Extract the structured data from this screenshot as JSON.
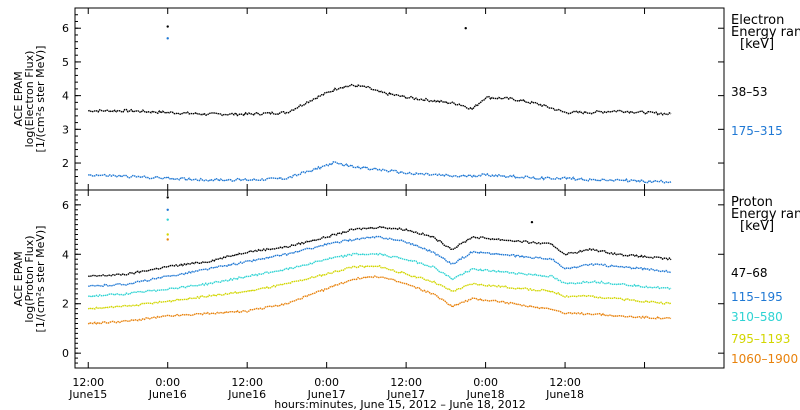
{
  "chart_data": [
    {
      "type": "scatter",
      "panel": "electron",
      "ylabel_lines": [
        "ACE EPAM",
        "log(Electron Flux)",
        "[1/(cm²s ster MeV)]"
      ],
      "ylim": [
        1.2,
        6.6
      ],
      "yticks": [
        "2",
        "3",
        "4",
        "5",
        "6"
      ],
      "legend_title": [
        "Electron",
        "Energy range",
        "[keV]"
      ],
      "series": [
        {
          "name": "38–53",
          "color": "#000000",
          "points": [
            [
              0,
              3.55
            ],
            [
              6,
              3.55
            ],
            [
              12,
              3.5
            ],
            [
              18,
              3.45
            ],
            [
              24,
              3.45
            ],
            [
              30,
              3.5
            ],
            [
              34,
              3.9
            ],
            [
              38,
              4.25
            ],
            [
              40,
              4.3
            ],
            [
              42,
              4.25
            ],
            [
              44,
              4.1
            ],
            [
              48,
              3.95
            ],
            [
              52,
              3.85
            ],
            [
              56,
              3.75
            ],
            [
              58,
              3.6
            ],
            [
              60,
              3.95
            ],
            [
              64,
              3.9
            ],
            [
              68,
              3.75
            ],
            [
              72,
              3.5
            ],
            [
              76,
              3.5
            ],
            [
              80,
              3.55
            ],
            [
              84,
              3.5
            ],
            [
              88,
              3.45
            ]
          ]
        },
        {
          "name": "175–315",
          "color": "#1f78d4",
          "points": [
            [
              0,
              1.65
            ],
            [
              6,
              1.6
            ],
            [
              12,
              1.55
            ],
            [
              18,
              1.5
            ],
            [
              24,
              1.5
            ],
            [
              30,
              1.55
            ],
            [
              34,
              1.8
            ],
            [
              37,
              2.0
            ],
            [
              40,
              1.9
            ],
            [
              44,
              1.8
            ],
            [
              48,
              1.7
            ],
            [
              52,
              1.65
            ],
            [
              56,
              1.6
            ],
            [
              60,
              1.65
            ],
            [
              64,
              1.6
            ],
            [
              68,
              1.55
            ],
            [
              72,
              1.55
            ],
            [
              76,
              1.5
            ],
            [
              80,
              1.5
            ],
            [
              84,
              1.45
            ],
            [
              88,
              1.45
            ]
          ]
        }
      ]
    },
    {
      "type": "scatter",
      "panel": "proton",
      "ylabel_lines": [
        "ACE EPAM",
        "log(Proton Flux)",
        "[1/(cm²s ster MeV)]"
      ],
      "ylim": [
        -0.6,
        6.6
      ],
      "yticks": [
        "0",
        "2",
        "4",
        "6"
      ],
      "legend_title": [
        "Proton",
        "Energy range",
        "[keV]"
      ],
      "series": [
        {
          "name": "47–68",
          "color": "#000000",
          "points": [
            [
              0,
              3.1
            ],
            [
              6,
              3.2
            ],
            [
              12,
              3.5
            ],
            [
              18,
              3.7
            ],
            [
              24,
              4.1
            ],
            [
              30,
              4.3
            ],
            [
              36,
              4.7
            ],
            [
              40,
              5.0
            ],
            [
              44,
              5.1
            ],
            [
              48,
              5.0
            ],
            [
              52,
              4.7
            ],
            [
              55,
              4.2
            ],
            [
              58,
              4.7
            ],
            [
              62,
              4.6
            ],
            [
              66,
              4.5
            ],
            [
              70,
              4.4
            ],
            [
              72,
              4.0
            ],
            [
              76,
              4.2
            ],
            [
              80,
              4.0
            ],
            [
              84,
              3.9
            ],
            [
              88,
              3.8
            ]
          ]
        },
        {
          "name": "115–195",
          "color": "#1f78d4",
          "points": [
            [
              0,
              2.7
            ],
            [
              6,
              2.8
            ],
            [
              12,
              3.1
            ],
            [
              18,
              3.4
            ],
            [
              24,
              3.7
            ],
            [
              30,
              4.0
            ],
            [
              36,
              4.4
            ],
            [
              40,
              4.6
            ],
            [
              44,
              4.7
            ],
            [
              48,
              4.5
            ],
            [
              52,
              4.1
            ],
            [
              55,
              3.6
            ],
            [
              58,
              4.1
            ],
            [
              62,
              4.0
            ],
            [
              66,
              3.9
            ],
            [
              70,
              3.8
            ],
            [
              72,
              3.4
            ],
            [
              76,
              3.6
            ],
            [
              80,
              3.5
            ],
            [
              84,
              3.4
            ],
            [
              88,
              3.3
            ]
          ]
        },
        {
          "name": "310–580",
          "color": "#2ed3d3",
          "points": [
            [
              0,
              2.3
            ],
            [
              6,
              2.4
            ],
            [
              12,
              2.6
            ],
            [
              18,
              2.8
            ],
            [
              24,
              3.1
            ],
            [
              30,
              3.4
            ],
            [
              36,
              3.8
            ],
            [
              40,
              4.0
            ],
            [
              44,
              4.0
            ],
            [
              48,
              3.8
            ],
            [
              52,
              3.5
            ],
            [
              55,
              3.0
            ],
            [
              58,
              3.4
            ],
            [
              62,
              3.3
            ],
            [
              66,
              3.2
            ],
            [
              70,
              3.1
            ],
            [
              72,
              2.8
            ],
            [
              76,
              2.9
            ],
            [
              80,
              2.8
            ],
            [
              84,
              2.7
            ],
            [
              88,
              2.6
            ]
          ]
        },
        {
          "name": "795–1193",
          "color": "#d2d600",
          "points": [
            [
              0,
              1.8
            ],
            [
              6,
              1.9
            ],
            [
              12,
              2.1
            ],
            [
              18,
              2.3
            ],
            [
              24,
              2.5
            ],
            [
              30,
              2.8
            ],
            [
              36,
              3.2
            ],
            [
              40,
              3.5
            ],
            [
              44,
              3.5
            ],
            [
              48,
              3.2
            ],
            [
              52,
              2.9
            ],
            [
              55,
              2.5
            ],
            [
              58,
              2.8
            ],
            [
              62,
              2.7
            ],
            [
              66,
              2.6
            ],
            [
              70,
              2.5
            ],
            [
              72,
              2.3
            ],
            [
              76,
              2.3
            ],
            [
              80,
              2.2
            ],
            [
              84,
              2.1
            ],
            [
              88,
              2.0
            ]
          ]
        },
        {
          "name": "1060–1900",
          "color": "#e8820c",
          "points": [
            [
              0,
              1.2
            ],
            [
              6,
              1.3
            ],
            [
              12,
              1.5
            ],
            [
              18,
              1.6
            ],
            [
              24,
              1.7
            ],
            [
              30,
              2.0
            ],
            [
              36,
              2.6
            ],
            [
              40,
              3.0
            ],
            [
              44,
              3.1
            ],
            [
              48,
              2.8
            ],
            [
              52,
              2.4
            ],
            [
              55,
              1.9
            ],
            [
              58,
              2.2
            ],
            [
              62,
              2.1
            ],
            [
              66,
              1.9
            ],
            [
              70,
              1.8
            ],
            [
              72,
              1.6
            ],
            [
              76,
              1.6
            ],
            [
              80,
              1.5
            ],
            [
              84,
              1.45
            ],
            [
              88,
              1.4
            ]
          ]
        }
      ]
    }
  ],
  "xaxis": {
    "range_hours": [
      -2,
      96
    ],
    "tick_hours": [
      0,
      12,
      24,
      36,
      48,
      60,
      72,
      84,
      96
    ],
    "tick_labels": [
      "12:00",
      "0:00",
      "12:00",
      "0:00",
      "12:00",
      "0:00",
      "12:00"
    ],
    "tick_label_hours": [
      0,
      12,
      24,
      36,
      48,
      60,
      72
    ],
    "day_labels": [
      "June15",
      "June16",
      "June16",
      "June17",
      "June17",
      "June18",
      "June18"
    ],
    "title": "hours:minutes, June 15, 2012 – June 18, 2012"
  }
}
